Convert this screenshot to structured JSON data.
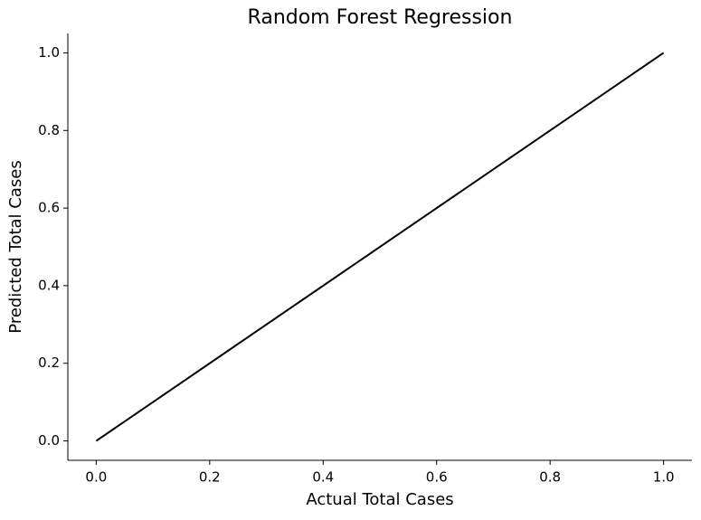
{
  "chart_data": {
    "type": "line",
    "title": "Random Forest Regression",
    "x_label": "Actual Total Cases",
    "y_label": "Predicted Total Cases",
    "x": [
      0,
      1
    ],
    "values": [
      0,
      1
    ],
    "color": "#000000",
    "xlim": [
      -0.05,
      1.05
    ],
    "ylim": [
      -0.05,
      1.05
    ],
    "xticks": [
      {
        "value": 0,
        "label": "0.0"
      },
      0.2,
      0.4,
      0.6,
      0.8,
      {
        "value": 1,
        "label": "1.0"
      }
    ],
    "yticks": [
      {
        "value": 0,
        "label": "0.0"
      },
      0.2,
      0.4,
      0.6,
      0.8,
      {
        "value": 1,
        "label": "1.0"
      }
    ],
    "grid": false
  }
}
